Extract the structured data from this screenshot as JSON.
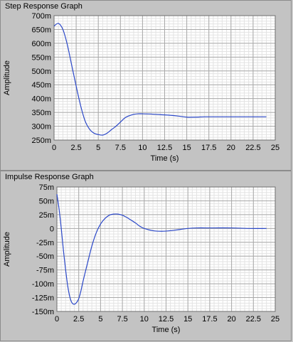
{
  "graphs": [
    {
      "title": "Step Response Graph",
      "chart_data": {
        "type": "line",
        "xlabel": "Time (s)",
        "ylabel": "Amplitude",
        "xlim": [
          0,
          25
        ],
        "ylim": [
          0.25,
          0.7
        ],
        "x_ticks": [
          "0",
          "2.5",
          "5",
          "7.5",
          "10",
          "12.5",
          "15",
          "17.5",
          "20",
          "22.5",
          "25"
        ],
        "y_ticks": [
          "700m",
          "650m",
          "600m",
          "550m",
          "500m",
          "450m",
          "400m",
          "350m",
          "300m",
          "250m"
        ],
        "grid": true,
        "color": "#2a47c8",
        "series": [
          {
            "x": [
              0,
              0.5,
              1.0,
              1.5,
              2.0,
              2.5,
              3.0,
              3.5,
              4.0,
              4.5,
              5.0,
              5.5,
              6.0,
              6.5,
              7.0,
              7.5,
              8.0,
              8.5,
              9.0,
              9.5,
              10.0,
              11.0,
              12.0,
              13.0,
              14.0,
              15.0,
              16.0,
              17.0,
              18.0,
              20.0,
              22.0,
              24.0
            ],
            "y": [
              0.662,
              0.672,
              0.65,
              0.595,
              0.52,
              0.445,
              0.375,
              0.32,
              0.29,
              0.275,
              0.27,
              0.268,
              0.275,
              0.288,
              0.3,
              0.315,
              0.33,
              0.338,
              0.343,
              0.345,
              0.345,
              0.344,
              0.342,
              0.34,
              0.337,
              0.333,
              0.333,
              0.334,
              0.334,
              0.334,
              0.334,
              0.334
            ]
          }
        ]
      }
    },
    {
      "title": "Impulse Response Graph",
      "chart_data": {
        "type": "line",
        "xlabel": "Time (s)",
        "ylabel": "Amplitude",
        "xlim": [
          0,
          25
        ],
        "ylim": [
          -0.15,
          0.075
        ],
        "x_ticks": [
          "0",
          "2.5",
          "5",
          "7.5",
          "10",
          "12.5",
          "15",
          "17.5",
          "20",
          "22.5",
          "25"
        ],
        "y_ticks": [
          "75m",
          "50m",
          "25m",
          "0",
          "-25m",
          "-50m",
          "-75m",
          "-100m",
          "-125m",
          "-150m"
        ],
        "grid": true,
        "color": "#2a47c8",
        "series": [
          {
            "x": [
              0,
              0.25,
              0.5,
              0.75,
              1.0,
              1.25,
              1.5,
              1.75,
              2.0,
              2.25,
              2.5,
              2.75,
              3.0,
              3.5,
              4.0,
              4.5,
              5.0,
              5.5,
              6.0,
              6.5,
              7.0,
              7.5,
              8.0,
              8.5,
              9.0,
              9.5,
              10.0,
              11.0,
              12.0,
              13.0,
              14.0,
              15.0,
              16.0,
              17.0,
              18.0,
              20.0,
              22.0,
              24.0
            ],
            "y": [
              0.062,
              0.035,
              0.0,
              -0.04,
              -0.075,
              -0.105,
              -0.125,
              -0.135,
              -0.137,
              -0.134,
              -0.127,
              -0.113,
              -0.095,
              -0.063,
              -0.032,
              -0.008,
              0.008,
              0.018,
              0.024,
              0.026,
              0.026,
              0.024,
              0.02,
              0.015,
              0.01,
              0.004,
              0.0,
              -0.004,
              -0.005,
              -0.004,
              -0.002,
              0.0,
              0.001,
              0.001,
              0.001,
              0.001,
              0.0,
              0.0
            ]
          }
        ]
      }
    }
  ]
}
